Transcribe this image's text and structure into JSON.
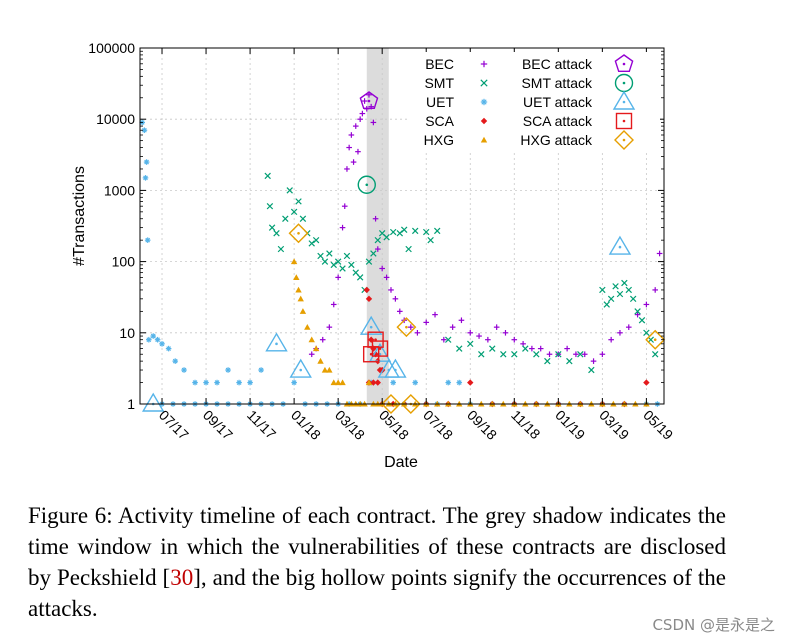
{
  "chart_data": {
    "type": "scatter",
    "title": "",
    "xlabel": "Date",
    "ylabel": "#Transactions",
    "y_scale": "log",
    "ylim": [
      1,
      100000
    ],
    "y_ticks": [
      {
        "value": 1,
        "label": "1"
      },
      {
        "value": 10,
        "label": "10"
      },
      {
        "value": 100,
        "label": "100"
      },
      {
        "value": 1000,
        "label": "1000"
      },
      {
        "value": 10000,
        "label": "10000"
      },
      {
        "value": 100000,
        "label": "100000"
      }
    ],
    "x_unit": "months since 2017-06",
    "xlim": [
      0,
      23.8
    ],
    "x_ticks": [
      {
        "value": 1,
        "label": "07/17"
      },
      {
        "value": 3,
        "label": "09/17"
      },
      {
        "value": 5,
        "label": "11/17"
      },
      {
        "value": 7,
        "label": "01/18"
      },
      {
        "value": 9,
        "label": "03/18"
      },
      {
        "value": 11,
        "label": "05/18"
      },
      {
        "value": 13,
        "label": "07/18"
      },
      {
        "value": 15,
        "label": "09/18"
      },
      {
        "value": 17,
        "label": "11/18"
      },
      {
        "value": 19,
        "label": "01/19"
      },
      {
        "value": 21,
        "label": "03/19"
      },
      {
        "value": 23,
        "label": "05/19"
      }
    ],
    "shaded_window": [
      10.3,
      11.3
    ],
    "legend_position": "top-right",
    "series": [
      {
        "name": "BEC",
        "attack_label": "BEC attack",
        "color": "#9400d3",
        "marker": "plus",
        "points": [
          [
            7.8,
            5
          ],
          [
            8,
            6
          ],
          [
            8.3,
            8
          ],
          [
            8.6,
            12
          ],
          [
            8.8,
            25
          ],
          [
            9,
            60
          ],
          [
            9.2,
            300
          ],
          [
            9.3,
            600
          ],
          [
            9.4,
            2000
          ],
          [
            9.5,
            4000
          ],
          [
            9.6,
            6000
          ],
          [
            9.7,
            2500
          ],
          [
            9.8,
            8000
          ],
          [
            9.9,
            3500
          ],
          [
            10,
            10000
          ],
          [
            10.1,
            12000
          ],
          [
            10.2,
            18000
          ],
          [
            10.3,
            14000
          ],
          [
            10.4,
            22000
          ],
          [
            10.5,
            15000
          ],
          [
            10.6,
            9000
          ],
          [
            10.7,
            400
          ],
          [
            10.8,
            150
          ],
          [
            11,
            80
          ],
          [
            11.2,
            60
          ],
          [
            11.4,
            40
          ],
          [
            11.6,
            30
          ],
          [
            11.8,
            20
          ],
          [
            12,
            15
          ],
          [
            12.3,
            12
          ],
          [
            12.6,
            10
          ],
          [
            13,
            14
          ],
          [
            13.4,
            18
          ],
          [
            13.8,
            8
          ],
          [
            14.2,
            12
          ],
          [
            14.6,
            15
          ],
          [
            15,
            10
          ],
          [
            15.4,
            9
          ],
          [
            15.8,
            8
          ],
          [
            16.2,
            12
          ],
          [
            16.6,
            10
          ],
          [
            17,
            8
          ],
          [
            17.4,
            7
          ],
          [
            17.8,
            6
          ],
          [
            18.2,
            6
          ],
          [
            18.6,
            5
          ],
          [
            19,
            5
          ],
          [
            19.4,
            6
          ],
          [
            19.8,
            5
          ],
          [
            20.2,
            5
          ],
          [
            20.6,
            4
          ],
          [
            21,
            5
          ],
          [
            21.4,
            8
          ],
          [
            21.8,
            10
          ],
          [
            22.2,
            12
          ],
          [
            22.6,
            18
          ],
          [
            23,
            25
          ],
          [
            23.4,
            40
          ],
          [
            23.6,
            130
          ]
        ]
      },
      {
        "name": "SMT",
        "attack_label": "SMT attack",
        "color": "#009e73",
        "marker": "x",
        "points": [
          [
            5.8,
            1600
          ],
          [
            5.9,
            600
          ],
          [
            6,
            300
          ],
          [
            6.2,
            250
          ],
          [
            6.4,
            150
          ],
          [
            6.6,
            400
          ],
          [
            6.8,
            1000
          ],
          [
            7,
            500
          ],
          [
            7.2,
            700
          ],
          [
            7.4,
            400
          ],
          [
            7.6,
            250
          ],
          [
            7.8,
            180
          ],
          [
            8,
            200
          ],
          [
            8.2,
            120
          ],
          [
            8.4,
            100
          ],
          [
            8.6,
            130
          ],
          [
            8.8,
            90
          ],
          [
            9,
            100
          ],
          [
            9.2,
            80
          ],
          [
            9.4,
            120
          ],
          [
            9.6,
            90
          ],
          [
            9.8,
            70
          ],
          [
            10,
            60
          ],
          [
            10.2,
            40
          ],
          [
            10.4,
            100
          ],
          [
            10.6,
            130
          ],
          [
            10.8,
            200
          ],
          [
            11,
            250
          ],
          [
            11.2,
            220
          ],
          [
            11.5,
            260
          ],
          [
            11.8,
            250
          ],
          [
            12,
            280
          ],
          [
            12.5,
            270
          ],
          [
            13,
            260
          ],
          [
            13.5,
            270
          ],
          [
            13.2,
            200
          ],
          [
            12.2,
            150
          ],
          [
            14,
            8
          ],
          [
            14.5,
            6
          ],
          [
            15,
            7
          ],
          [
            15.5,
            5
          ],
          [
            16,
            6
          ],
          [
            16.5,
            5
          ],
          [
            17,
            5
          ],
          [
            17.5,
            6
          ],
          [
            18,
            5
          ],
          [
            18.5,
            4
          ],
          [
            19,
            5
          ],
          [
            19.5,
            4
          ],
          [
            20,
            5
          ],
          [
            20.5,
            3
          ],
          [
            21,
            40
          ],
          [
            21.2,
            25
          ],
          [
            21.4,
            30
          ],
          [
            21.6,
            45
          ],
          [
            21.8,
            35
          ],
          [
            22,
            50
          ],
          [
            22.2,
            40
          ],
          [
            22.4,
            30
          ],
          [
            22.6,
            20
          ],
          [
            22.8,
            15
          ],
          [
            23,
            10
          ],
          [
            23.2,
            8
          ],
          [
            23.4,
            5
          ]
        ]
      },
      {
        "name": "UET",
        "attack_label": "UET attack",
        "color": "#56b4e9",
        "marker": "star",
        "points": [
          [
            0.1,
            9000
          ],
          [
            0.2,
            7000
          ],
          [
            0.25,
            1500
          ],
          [
            0.3,
            2500
          ],
          [
            0.35,
            200
          ],
          [
            0.4,
            8
          ],
          [
            0.6,
            9
          ],
          [
            0.8,
            8
          ],
          [
            1,
            7
          ],
          [
            1.3,
            6
          ],
          [
            1.6,
            4
          ],
          [
            2,
            3
          ],
          [
            2.5,
            2
          ],
          [
            3,
            2
          ],
          [
            3.5,
            2
          ],
          [
            4,
            3
          ],
          [
            4.5,
            2
          ],
          [
            5,
            2
          ],
          [
            5.5,
            3
          ],
          [
            1,
            1
          ],
          [
            1.5,
            1
          ],
          [
            2,
            1
          ],
          [
            2.5,
            1
          ],
          [
            3,
            1
          ],
          [
            3.5,
            1
          ],
          [
            4,
            1
          ],
          [
            4.5,
            1
          ],
          [
            5,
            1
          ],
          [
            5.5,
            1
          ],
          [
            6,
            1
          ],
          [
            6.5,
            1
          ],
          [
            7,
            2
          ],
          [
            7.5,
            1
          ],
          [
            8,
            1
          ],
          [
            8.5,
            1
          ],
          [
            9,
            1
          ],
          [
            9.5,
            1
          ],
          [
            10,
            1
          ],
          [
            10.5,
            2
          ],
          [
            11,
            3
          ],
          [
            11.5,
            2
          ],
          [
            12,
            1
          ],
          [
            12.5,
            2
          ],
          [
            13,
            1
          ],
          [
            13.5,
            1
          ],
          [
            14,
            2
          ],
          [
            14.5,
            2
          ],
          [
            15,
            1
          ],
          [
            16,
            1
          ],
          [
            17,
            1
          ],
          [
            18,
            1
          ],
          [
            19,
            1
          ],
          [
            20,
            1
          ],
          [
            21,
            1
          ],
          [
            22,
            1
          ],
          [
            23,
            1
          ],
          [
            23.5,
            1
          ]
        ]
      },
      {
        "name": "SCA",
        "attack_label": "SCA attack",
        "color": "#e41a1c",
        "marker": "diamond",
        "points": [
          [
            10.3,
            40
          ],
          [
            10.4,
            30
          ],
          [
            10.5,
            8
          ],
          [
            10.6,
            6
          ],
          [
            10.7,
            5
          ],
          [
            10.8,
            4
          ],
          [
            10.9,
            3
          ],
          [
            11,
            3
          ],
          [
            10.4,
            2
          ],
          [
            10.6,
            2
          ],
          [
            10.8,
            2
          ],
          [
            11,
            1
          ],
          [
            11.5,
            1
          ],
          [
            12,
            1
          ],
          [
            13,
            1
          ],
          [
            14,
            1
          ],
          [
            15,
            2
          ],
          [
            16,
            1
          ],
          [
            17,
            1
          ],
          [
            18,
            1
          ],
          [
            19,
            1
          ],
          [
            20,
            1
          ],
          [
            21,
            1
          ],
          [
            22,
            1
          ],
          [
            23,
            2
          ]
        ]
      },
      {
        "name": "HXG",
        "attack_label": "HXG attack",
        "color": "#e69f00",
        "marker": "triangle",
        "points": [
          [
            7,
            100
          ],
          [
            7.1,
            60
          ],
          [
            7.2,
            40
          ],
          [
            7.3,
            30
          ],
          [
            7.4,
            20
          ],
          [
            7.6,
            12
          ],
          [
            7.8,
            8
          ],
          [
            8,
            6
          ],
          [
            8.2,
            4
          ],
          [
            8.4,
            3
          ],
          [
            8.6,
            3
          ],
          [
            8.8,
            2
          ],
          [
            9,
            2
          ],
          [
            9.2,
            2
          ],
          [
            9.4,
            1
          ],
          [
            9.6,
            1
          ],
          [
            9.8,
            1
          ],
          [
            10,
            1
          ],
          [
            10.2,
            1
          ],
          [
            10.4,
            2
          ],
          [
            10.6,
            1
          ],
          [
            10.8,
            1
          ],
          [
            11,
            1
          ],
          [
            11.3,
            1
          ],
          [
            11.6,
            1
          ],
          [
            12,
            1
          ],
          [
            12.5,
            1
          ],
          [
            13,
            1
          ],
          [
            13.5,
            1
          ],
          [
            14,
            1
          ],
          [
            14.5,
            1
          ],
          [
            15,
            1
          ],
          [
            15.5,
            1
          ],
          [
            16,
            1
          ],
          [
            16.5,
            1
          ],
          [
            17,
            1
          ],
          [
            17.5,
            1
          ],
          [
            18,
            1
          ],
          [
            18.5,
            1
          ],
          [
            19,
            1
          ],
          [
            19.5,
            1
          ],
          [
            20,
            1
          ],
          [
            20.5,
            1
          ],
          [
            21,
            1
          ],
          [
            21.5,
            1
          ],
          [
            22,
            1
          ],
          [
            22.5,
            1
          ],
          [
            23,
            1
          ]
        ]
      }
    ],
    "attacks": [
      {
        "series": "BEC",
        "color": "#9400d3",
        "marker": "pentagon",
        "points": [
          [
            10.4,
            18000
          ]
        ]
      },
      {
        "series": "SMT",
        "color": "#009e73",
        "marker": "circle",
        "points": [
          [
            10.3,
            1200
          ]
        ]
      },
      {
        "series": "UET",
        "color": "#56b4e9",
        "marker": "triangle",
        "points": [
          [
            0.6,
            1
          ],
          [
            6.2,
            7
          ],
          [
            7.3,
            3
          ],
          [
            10.5,
            12
          ],
          [
            10.9,
            5
          ],
          [
            11.3,
            3
          ],
          [
            11.6,
            3
          ],
          [
            21.8,
            160
          ]
        ]
      },
      {
        "series": "SCA",
        "color": "#e41a1c",
        "marker": "square",
        "points": [
          [
            10.5,
            5
          ],
          [
            10.7,
            8
          ],
          [
            10.9,
            6
          ]
        ]
      },
      {
        "series": "HXG",
        "color": "#e69f00",
        "marker": "diamond",
        "points": [
          [
            7.2,
            250
          ],
          [
            11.4,
            1
          ],
          [
            12.1,
            12
          ],
          [
            12.3,
            1
          ],
          [
            23.4,
            8
          ]
        ]
      }
    ]
  },
  "caption": {
    "before_ref": "Figure 6: Activity timeline of each contract. The grey shadow indicates the time window in which the vulnerabilities of these contracts are disclosed by Peckshield [",
    "ref": "30",
    "after_ref": "], and the big hollow points signify the occurrences of the attacks."
  },
  "watermark": "CSDN @是永是之"
}
